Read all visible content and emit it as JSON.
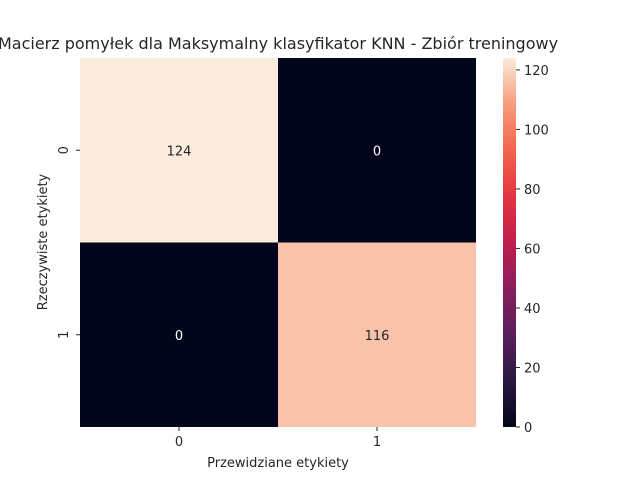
{
  "chart_data": {
    "type": "heatmap",
    "title": "Macierz pomyłek dla Maksymalny klasyfikator KNN - Zbiór treningowy",
    "xlabel": "Przewidziane etykiety",
    "ylabel": "Rzeczywiste etykiety",
    "x_categories": [
      "0",
      "1"
    ],
    "y_categories": [
      "0",
      "1"
    ],
    "values": [
      [
        124,
        0
      ],
      [
        0,
        116
      ]
    ],
    "colorbar": {
      "colormap": "rocket",
      "range": [
        0,
        124
      ],
      "ticks": [
        "0",
        "20",
        "40",
        "60",
        "80",
        "100",
        "120"
      ]
    }
  }
}
